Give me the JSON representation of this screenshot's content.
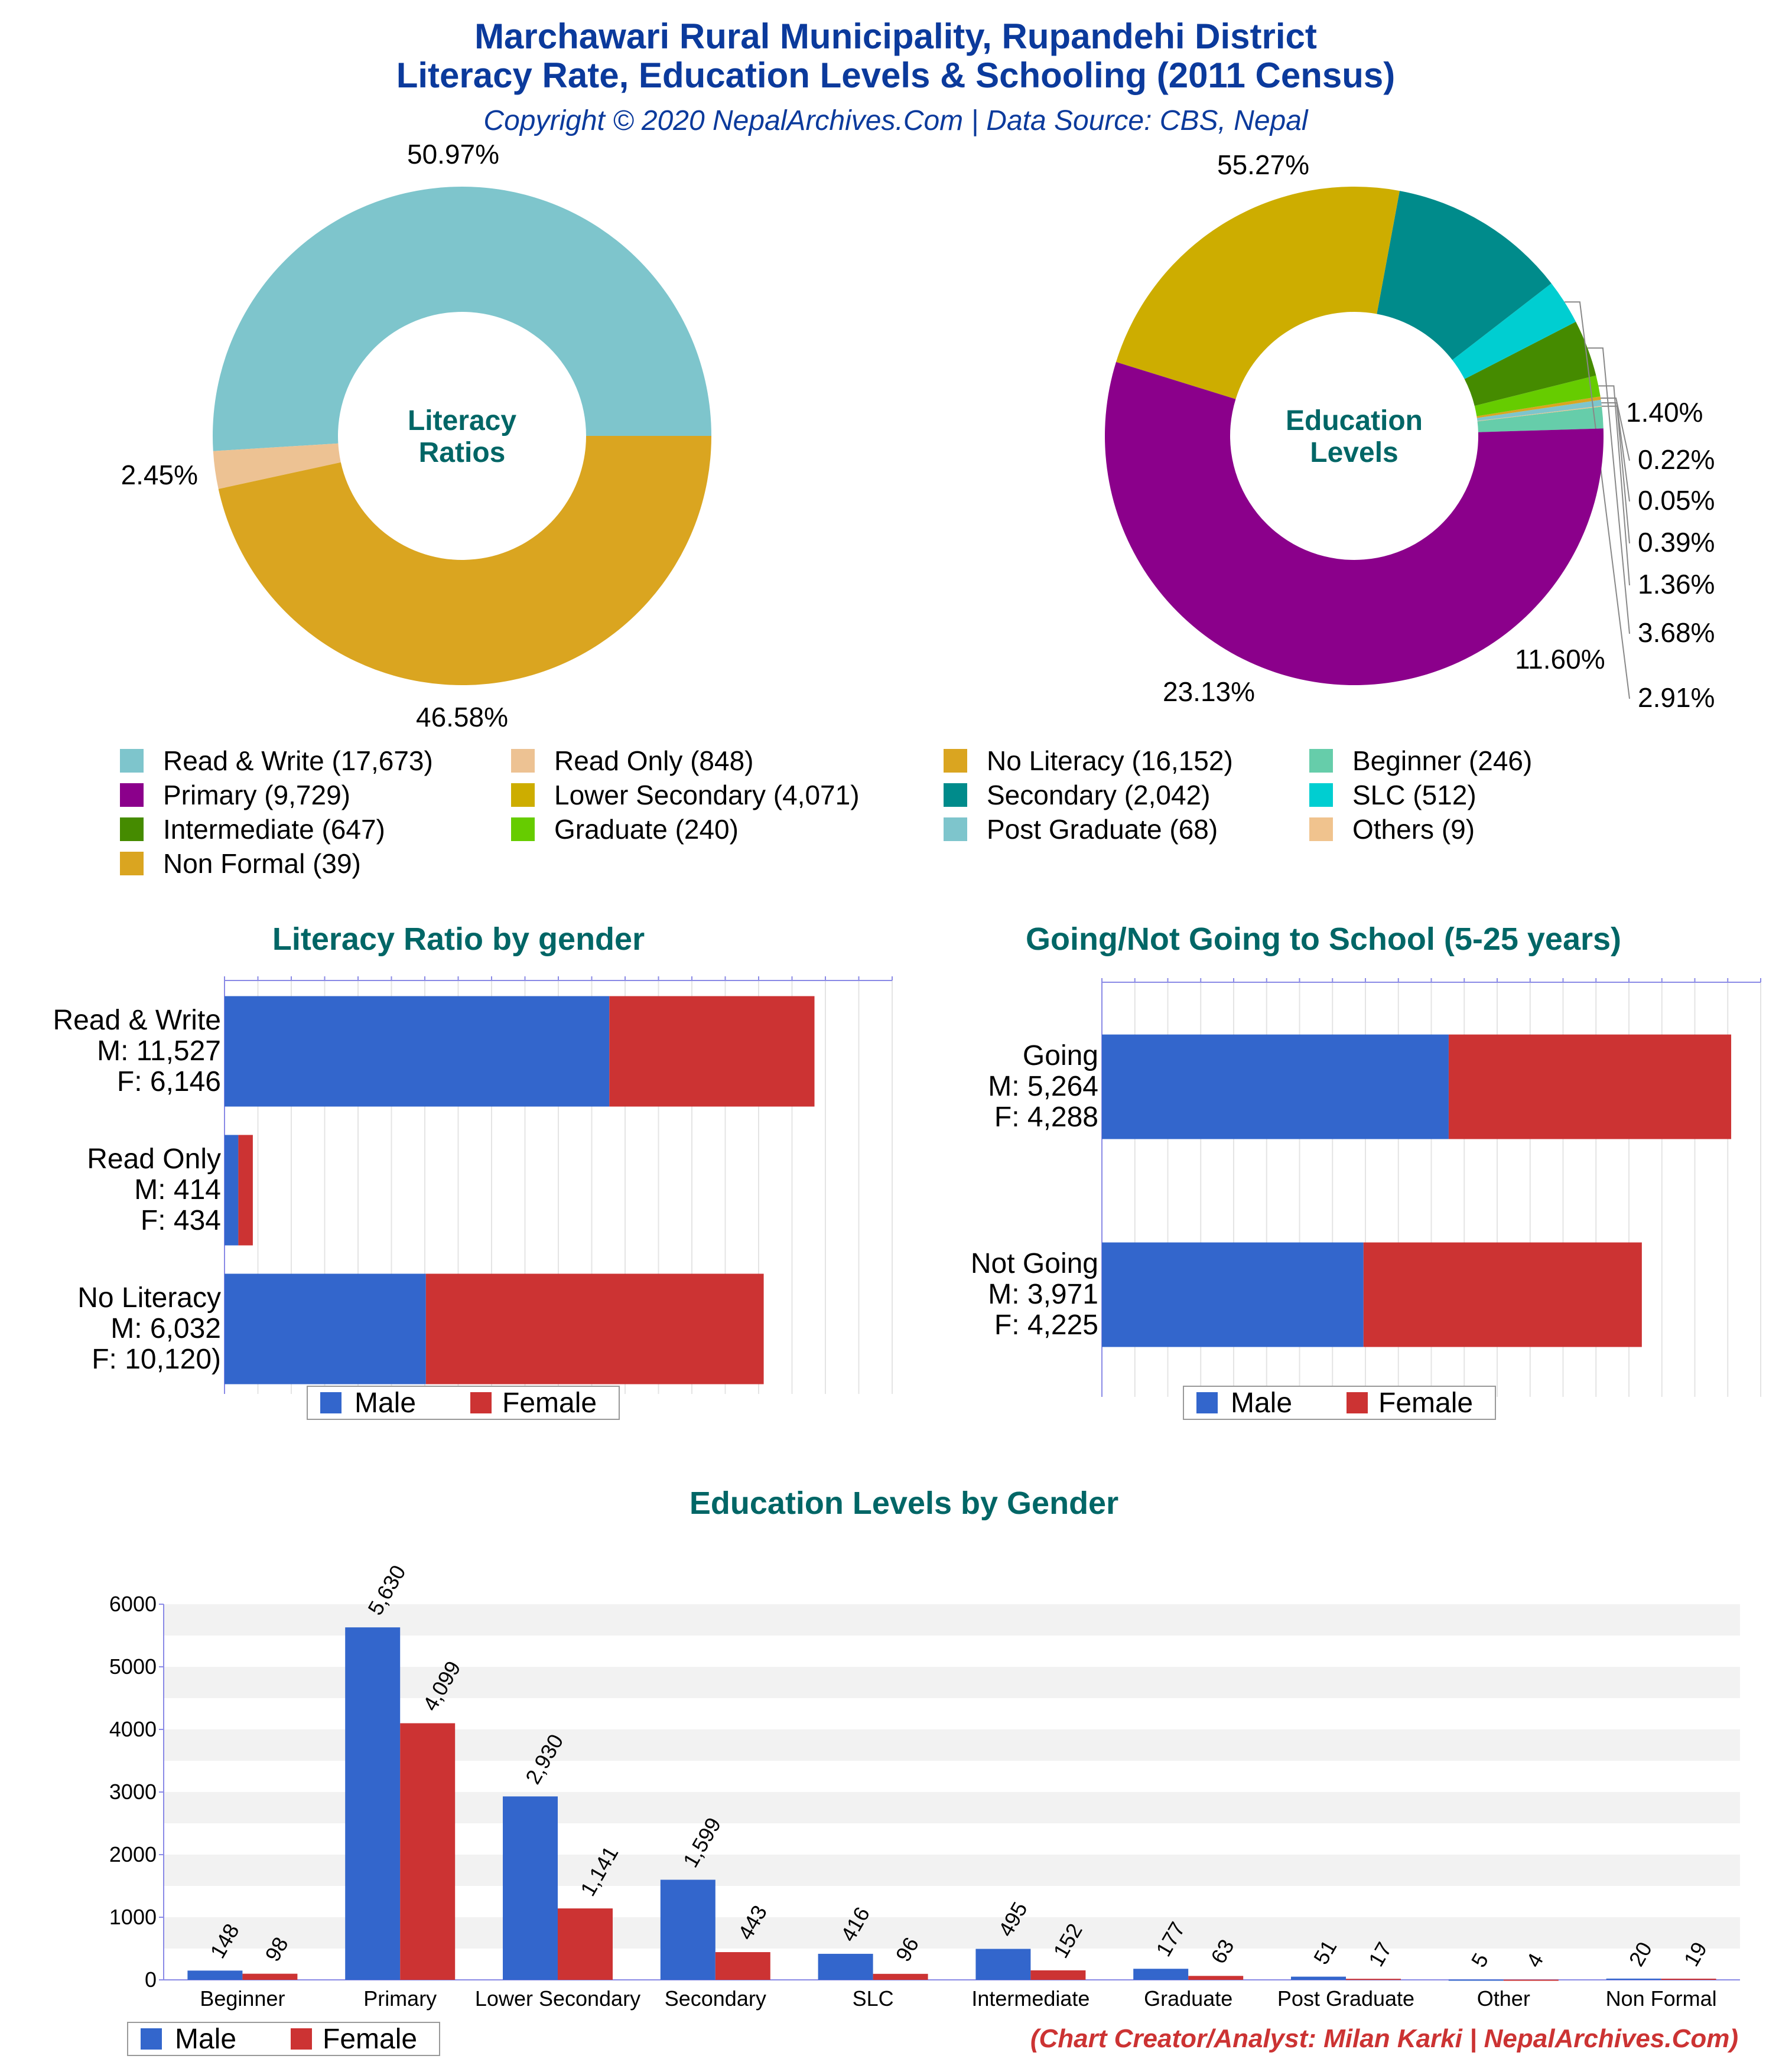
{
  "header": {
    "title_line1": "Marchawari Rural Municipality, Rupandehi District",
    "title_line2": "Literacy Rate, Education Levels & Schooling (2011 Census)",
    "subtitle": "Copyright © 2020 NepalArchives.Com | Data Source: CBS, Nepal"
  },
  "footer": {
    "credit": "(Chart Creator/Analyst: Milan Karki | NepalArchives.Com)"
  },
  "colors": {
    "title": "#0b3a9c",
    "section_title": "#006666",
    "male": "#3366cc",
    "female": "#cc3333",
    "credit": "#cc3333"
  },
  "chart_data": [
    {
      "type": "pie",
      "donut": true,
      "center_label": [
        "Literacy",
        "Ratios"
      ],
      "slices": [
        {
          "label": "Read & Write",
          "value": 17673,
          "percent_label": "50.97%",
          "color": "#7ec5cc"
        },
        {
          "label": "Read Only",
          "value": 848,
          "percent_label": "2.45%",
          "color": "#edc293"
        },
        {
          "label": "No Literacy",
          "value": 16152,
          "percent_label": "46.58%",
          "color": "#daa520"
        }
      ]
    },
    {
      "type": "pie",
      "donut": true,
      "center_label": [
        "Education",
        "Levels"
      ],
      "slices": [
        {
          "label": "Beginner",
          "value": 246,
          "percent_label": "1.40%",
          "color": "#66cdaa"
        },
        {
          "label": "Others",
          "value": 9,
          "percent_label": "0.05%",
          "color": "#f0c38e"
        },
        {
          "label": "Post Graduate",
          "value": 68,
          "percent_label": "0.39%",
          "color": "#7ec5cc"
        },
        {
          "label": "Non Formal",
          "value": 39,
          "percent_label": "0.22%",
          "color": "#daa520"
        },
        {
          "label": "Graduate",
          "value": 240,
          "percent_label": "1.36%",
          "color": "#66cc00"
        },
        {
          "label": "Intermediate",
          "value": 647,
          "percent_label": "3.68%",
          "color": "#458b00"
        },
        {
          "label": "SLC",
          "value": 512,
          "percent_label": "2.91%",
          "color": "#00ced1"
        },
        {
          "label": "Secondary",
          "value": 2042,
          "percent_label": "11.60%",
          "color": "#008b8b"
        },
        {
          "label": "Lower Secondary",
          "value": 4071,
          "percent_label": "23.13%",
          "color": "#cdad00"
        },
        {
          "label": "Primary",
          "value": 9729,
          "percent_label": "55.27%",
          "color": "#8b008b"
        }
      ]
    },
    {
      "type": "legend",
      "items": [
        {
          "text": "Read & Write (17,673)",
          "color": "#7ec5cc"
        },
        {
          "text": "Read Only (848)",
          "color": "#edc293"
        },
        {
          "text": "No Literacy (16,152)",
          "color": "#daa520"
        },
        {
          "text": "Beginner (246)",
          "color": "#66cdaa"
        },
        {
          "text": "Primary (9,729)",
          "color": "#8b008b"
        },
        {
          "text": "Lower Secondary (4,071)",
          "color": "#cdad00"
        },
        {
          "text": "Secondary (2,042)",
          "color": "#008b8b"
        },
        {
          "text": "SLC (512)",
          "color": "#00ced1"
        },
        {
          "text": "Intermediate (647)",
          "color": "#458b00"
        },
        {
          "text": "Graduate (240)",
          "color": "#66cc00"
        },
        {
          "text": "Post Graduate (68)",
          "color": "#7ec5cc"
        },
        {
          "text": "Others (9)",
          "color": "#f0c38e"
        },
        {
          "text": "Non Formal (39)",
          "color": "#daa520"
        }
      ]
    },
    {
      "type": "bar",
      "orientation": "horizontal",
      "stacked": true,
      "title": "Literacy Ratio by gender",
      "categories": [
        {
          "lines": [
            "Read & Write",
            "M: 11,527",
            "F: 6,146"
          ]
        },
        {
          "lines": [
            "Read Only",
            "M: 414",
            "F: 434"
          ]
        },
        {
          "lines": [
            "No Literacy",
            "M: 6,032",
            "F: 10,120)"
          ]
        }
      ],
      "series": [
        {
          "name": "Male",
          "values": [
            11527,
            414,
            6032
          ]
        },
        {
          "name": "Female",
          "values": [
            6146,
            434,
            10120
          ]
        }
      ],
      "xlim": [
        0,
        20000
      ]
    },
    {
      "type": "bar",
      "orientation": "horizontal",
      "stacked": true,
      "title": "Going/Not Going to School (5-25 years)",
      "categories": [
        {
          "lines": [
            "Going",
            "M: 5,264",
            "F: 4,288"
          ]
        },
        {
          "lines": [
            "Not Going",
            "M: 3,971",
            "F: 4,225"
          ]
        }
      ],
      "series": [
        {
          "name": "Male",
          "values": [
            5264,
            3971
          ]
        },
        {
          "name": "Female",
          "values": [
            4288,
            4225
          ]
        }
      ],
      "xlim": [
        0,
        10000
      ]
    },
    {
      "type": "bar",
      "title": "Education Levels by Gender",
      "categories": [
        "Beginner",
        "Primary",
        "Lower Secondary",
        "Secondary",
        "SLC",
        "Intermediate",
        "Graduate",
        "Post Graduate",
        "Other",
        "Non Formal"
      ],
      "series": [
        {
          "name": "Male",
          "values": [
            148,
            5630,
            2930,
            1599,
            416,
            495,
            177,
            51,
            5,
            20
          ],
          "labels": [
            "148",
            "5,630",
            "2,930",
            "1,599",
            "416",
            "495",
            "177",
            "51",
            "5",
            "20"
          ]
        },
        {
          "name": "Female",
          "values": [
            98,
            4099,
            1141,
            443,
            96,
            152,
            63,
            17,
            4,
            19
          ],
          "labels": [
            "98",
            "4,099",
            "1,141",
            "443",
            "96",
            "152",
            "63",
            "17",
            "4",
            "19"
          ]
        }
      ],
      "ylim": [
        0,
        6000
      ],
      "yticks": [
        "0",
        "1000",
        "2000",
        "3000",
        "4000",
        "5000",
        "6000"
      ]
    }
  ]
}
